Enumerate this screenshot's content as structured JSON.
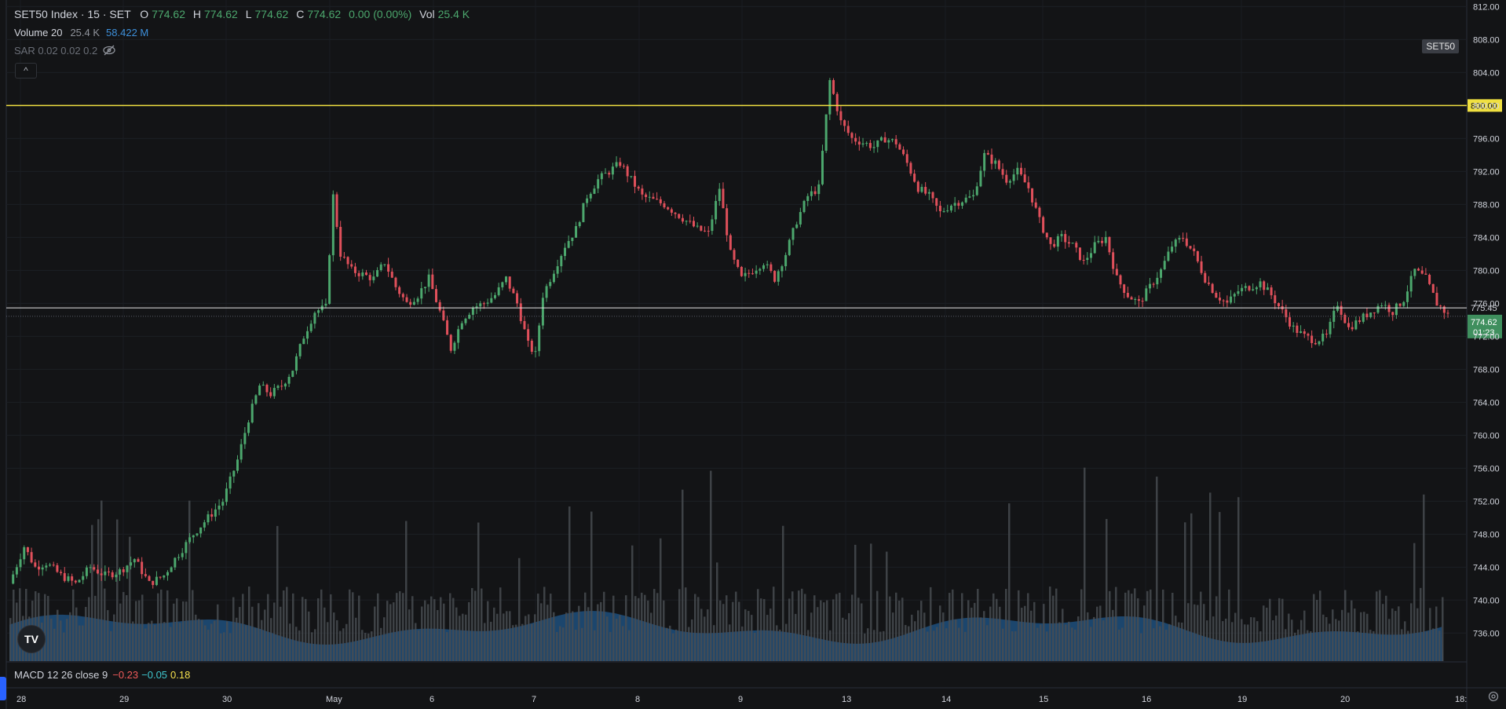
{
  "header": {
    "symbol_title": "SET50 Index · 15 · SET",
    "open_label": "O",
    "open": "774.62",
    "high_label": "H",
    "high": "774.62",
    "low_label": "L",
    "low": "774.62",
    "close_label": "C",
    "close": "774.62",
    "change": "0.00 (0.00%)",
    "vol_label": "Vol",
    "vol": "25.4 K"
  },
  "volume_legend": {
    "label": "Volume 20",
    "value": "25.4 K",
    "ma": "58.422 M"
  },
  "sar_legend": {
    "label": "SAR 0.02 0.02 0.2"
  },
  "collapse_button": "^",
  "symbol_badge": "SET50",
  "macd_legend": {
    "label": "MACD 12 26 close 9",
    "macd": "−0.23",
    "signal": "−0.05",
    "hist": "0.18"
  },
  "logo_text": "TV",
  "colors": {
    "up": "#4ca76d",
    "down": "#e0505b",
    "horizontal_line": "#f0e040",
    "volume": "#1e4f7d",
    "volume_bar": "#4a4d53"
  },
  "icons": [
    "eye-crossed-icon",
    "chevron-up-icon",
    "tradingview-logo-icon",
    "settings-icon"
  ],
  "chart_data": {
    "type": "candlestick",
    "title": "SET50 Index · 15 · SET",
    "y_ticks": [
      "812.00",
      "808.00",
      "804.00",
      "800.00",
      "796.00",
      "792.00",
      "788.00",
      "784.00",
      "780.00",
      "776.00",
      "772.00",
      "768.00",
      "764.00",
      "760.00",
      "756.00",
      "752.00",
      "748.00",
      "744.00",
      "740.00",
      "736.00"
    ],
    "ylim": [
      732.6,
      812.8
    ],
    "x_ticks": [
      "28",
      "29",
      "30",
      "May",
      "6",
      "7",
      "8",
      "9",
      "13",
      "14",
      "15",
      "16",
      "19",
      "20",
      "18:"
    ],
    "horizontal_line": {
      "price": 800.0,
      "label": "800.00"
    },
    "last_line": {
      "price": 775.45,
      "label": "775.45"
    },
    "current_price": {
      "label": "774.62",
      "countdown": "01:23",
      "price": 774.62
    },
    "close_path": [
      [
        0,
        742.0
      ],
      [
        8,
        746.5
      ],
      [
        14,
        744.0
      ],
      [
        20,
        744.5
      ],
      [
        28,
        743.0
      ],
      [
        36,
        742.0
      ],
      [
        44,
        744.0
      ],
      [
        52,
        743.0
      ],
      [
        60,
        743.5
      ],
      [
        68,
        745.0
      ],
      [
        76,
        742.0
      ],
      [
        84,
        743.0
      ],
      [
        90,
        745.0
      ],
      [
        100,
        748.0
      ],
      [
        108,
        750.0
      ],
      [
        116,
        752.0
      ],
      [
        124,
        757.0
      ],
      [
        130,
        762.0
      ],
      [
        136,
        766.0
      ],
      [
        142,
        765.0
      ],
      [
        148,
        766.0
      ],
      [
        154,
        768.0
      ],
      [
        160,
        772.0
      ],
      [
        166,
        775.0
      ],
      [
        172,
        775.5
      ],
      [
        176,
        789.0
      ],
      [
        180,
        782.0
      ],
      [
        186,
        780.0
      ],
      [
        192,
        779.5
      ],
      [
        198,
        779.0
      ],
      [
        204,
        781.0
      ],
      [
        210,
        778.0
      ],
      [
        216,
        776.0
      ],
      [
        222,
        777.0
      ],
      [
        228,
        779.0
      ],
      [
        234,
        775.0
      ],
      [
        240,
        770.5
      ],
      [
        246,
        774.0
      ],
      [
        252,
        775.5
      ],
      [
        258,
        776.0
      ],
      [
        264,
        777.0
      ],
      [
        270,
        779.0
      ],
      [
        276,
        776.0
      ],
      [
        282,
        771.0
      ],
      [
        286,
        769.8
      ],
      [
        290,
        777.0
      ],
      [
        296,
        780.0
      ],
      [
        302,
        783.0
      ],
      [
        308,
        785.0
      ],
      [
        314,
        789.0
      ],
      [
        320,
        791.0
      ],
      [
        326,
        792.0
      ],
      [
        332,
        793.0
      ],
      [
        338,
        791.0
      ],
      [
        344,
        789.0
      ],
      [
        350,
        788.5
      ],
      [
        356,
        788.0
      ],
      [
        362,
        787.0
      ],
      [
        368,
        786.0
      ],
      [
        374,
        785.0
      ],
      [
        380,
        784.5
      ],
      [
        386,
        790.0
      ],
      [
        392,
        782.0
      ],
      [
        398,
        779.0
      ],
      [
        404,
        780.0
      ],
      [
        410,
        781.0
      ],
      [
        416,
        779.0
      ],
      [
        422,
        782.0
      ],
      [
        428,
        786.0
      ],
      [
        434,
        789.0
      ],
      [
        440,
        790.0
      ],
      [
        446,
        803.0
      ],
      [
        452,
        798.0
      ],
      [
        458,
        796.0
      ],
      [
        464,
        795.5
      ],
      [
        470,
        795.0
      ],
      [
        476,
        796.0
      ],
      [
        482,
        795.5
      ],
      [
        488,
        793.0
      ],
      [
        494,
        790.0
      ],
      [
        500,
        789.0
      ],
      [
        506,
        787.0
      ],
      [
        512,
        788.0
      ],
      [
        518,
        788.5
      ],
      [
        524,
        789.0
      ],
      [
        530,
        794.0
      ],
      [
        536,
        793.0
      ],
      [
        542,
        791.0
      ],
      [
        548,
        792.0
      ],
      [
        554,
        790.0
      ],
      [
        560,
        786.0
      ],
      [
        566,
        783.0
      ],
      [
        572,
        784.0
      ],
      [
        578,
        783.0
      ],
      [
        584,
        781.0
      ],
      [
        590,
        783.0
      ],
      [
        596,
        784.0
      ],
      [
        602,
        779.0
      ],
      [
        608,
        777.0
      ],
      [
        614,
        776.0
      ],
      [
        620,
        778.0
      ],
      [
        626,
        780.0
      ],
      [
        632,
        783.0
      ],
      [
        638,
        784.0
      ],
      [
        644,
        782.0
      ],
      [
        650,
        779.0
      ],
      [
        656,
        777.0
      ],
      [
        662,
        776.0
      ],
      [
        668,
        777.5
      ],
      [
        674,
        778.0
      ],
      [
        680,
        778.5
      ],
      [
        686,
        777.0
      ],
      [
        692,
        775.0
      ],
      [
        698,
        773.0
      ],
      [
        704,
        772.0
      ],
      [
        710,
        771.5
      ],
      [
        716,
        772.0
      ],
      [
        722,
        776.0
      ],
      [
        728,
        773.0
      ],
      [
        734,
        774.0
      ],
      [
        740,
        775.0
      ],
      [
        746,
        776.0
      ],
      [
        752,
        775.0
      ],
      [
        758,
        776.5
      ],
      [
        764,
        780.0
      ],
      [
        770,
        779.0
      ],
      [
        776,
        776.0
      ],
      [
        782,
        774.62
      ]
    ],
    "volume": "bars + moving-average area"
  }
}
